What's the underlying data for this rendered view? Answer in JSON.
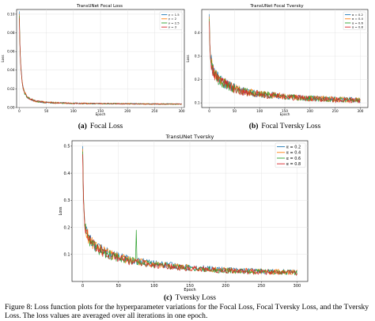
{
  "figure_caption": {
    "line1": "Figure 8: Loss function plots for the hyperparameter variations for the Focal Loss, Focal Tversky Loss, and the Tversky",
    "line2": "Loss. The loss values are averaged over all iterations in one epoch."
  },
  "colors": {
    "blue": "#1f77b4",
    "orange": "#ff7f0e",
    "green": "#2ca02c",
    "red": "#d62728"
  },
  "chart_data": [
    {
      "type": "line",
      "title": "TransUNet Focal Loss",
      "subcaption_label": "(a)",
      "subcaption_text": "Focal Loss",
      "xlabel": "Epoch",
      "ylabel": "Loss",
      "xlim": [
        -5,
        305
      ],
      "ylim": [
        0,
        0.105
      ],
      "xticks": [
        0,
        50,
        100,
        150,
        200,
        250,
        300
      ],
      "yticks": [
        0.0,
        0.02,
        0.04,
        0.06,
        0.08,
        0.1
      ],
      "ytick_labels": [
        "0.00",
        "0.02",
        "0.04",
        "0.06",
        "0.08",
        "0.10"
      ],
      "grid": true,
      "legend_position": "top-right",
      "noise": 0.0006,
      "spikes": [],
      "series": [
        {
          "name": "γ = 1.5",
          "color": "#1f77b4",
          "x": [
            0,
            1,
            2,
            3,
            5,
            7,
            10,
            15,
            20,
            30,
            40,
            50,
            70,
            100,
            150,
            200,
            250,
            300
          ],
          "y": [
            0.103,
            0.072,
            0.055,
            0.044,
            0.03,
            0.022,
            0.016,
            0.011,
            0.009,
            0.007,
            0.006,
            0.0055,
            0.005,
            0.0045,
            0.0042,
            0.004,
            0.0038,
            0.0037
          ]
        },
        {
          "name": "γ = 2",
          "color": "#ff7f0e",
          "x": [
            0,
            1,
            2,
            3,
            5,
            7,
            10,
            15,
            20,
            30,
            40,
            50,
            70,
            100,
            150,
            200,
            250,
            300
          ],
          "y": [
            0.1,
            0.07,
            0.054,
            0.043,
            0.029,
            0.021,
            0.016,
            0.011,
            0.009,
            0.007,
            0.006,
            0.0055,
            0.005,
            0.0045,
            0.0042,
            0.004,
            0.0038,
            0.0037
          ]
        },
        {
          "name": "γ = 2.5",
          "color": "#2ca02c",
          "x": [
            0,
            1,
            2,
            3,
            5,
            7,
            10,
            15,
            20,
            30,
            40,
            50,
            70,
            100,
            150,
            200,
            250,
            300
          ],
          "y": [
            0.098,
            0.069,
            0.053,
            0.042,
            0.029,
            0.021,
            0.015,
            0.011,
            0.009,
            0.007,
            0.006,
            0.0055,
            0.005,
            0.0045,
            0.0042,
            0.004,
            0.0038,
            0.0037
          ]
        },
        {
          "name": "γ = 3",
          "color": "#d62728",
          "x": [
            0,
            1,
            2,
            3,
            5,
            7,
            10,
            15,
            20,
            30,
            40,
            50,
            70,
            100,
            150,
            200,
            250,
            300
          ],
          "y": [
            0.096,
            0.068,
            0.052,
            0.041,
            0.028,
            0.02,
            0.015,
            0.011,
            0.009,
            0.007,
            0.006,
            0.0055,
            0.005,
            0.0045,
            0.0042,
            0.004,
            0.0038,
            0.0037
          ]
        }
      ]
    },
    {
      "type": "line",
      "title": "TransUNet Focal Tversky",
      "subcaption_label": "(b)",
      "subcaption_text": "Focal Tversky Loss",
      "xlabel": "Epoch",
      "ylabel": "Loss",
      "xlim": [
        -15,
        315
      ],
      "ylim": [
        0.08,
        0.5
      ],
      "xticks": [
        0,
        50,
        100,
        150,
        200,
        250,
        300
      ],
      "yticks": [
        0.1,
        0.2,
        0.3,
        0.4
      ],
      "ytick_labels": [
        "0.1",
        "0.2",
        "0.3",
        "0.4"
      ],
      "grid": true,
      "legend_position": "top-right",
      "noise": 0.012,
      "spikes": [],
      "series": [
        {
          "name": "α = 0.2",
          "color": "#1f77b4",
          "x": [
            0,
            1,
            2,
            3,
            5,
            8,
            10,
            15,
            20,
            30,
            40,
            50,
            60,
            70,
            80,
            100,
            150,
            200,
            250,
            300
          ],
          "y": [
            0.48,
            0.36,
            0.32,
            0.29,
            0.265,
            0.245,
            0.235,
            0.215,
            0.2,
            0.185,
            0.172,
            0.163,
            0.155,
            0.15,
            0.145,
            0.138,
            0.128,
            0.12,
            0.115,
            0.112
          ]
        },
        {
          "name": "α = 0.4",
          "color": "#ff7f0e",
          "x": [
            0,
            1,
            2,
            3,
            5,
            8,
            10,
            15,
            20,
            30,
            40,
            50,
            60,
            70,
            80,
            100,
            150,
            200,
            250,
            300
          ],
          "y": [
            0.47,
            0.355,
            0.315,
            0.29,
            0.265,
            0.245,
            0.235,
            0.215,
            0.2,
            0.185,
            0.172,
            0.163,
            0.155,
            0.15,
            0.145,
            0.138,
            0.128,
            0.12,
            0.115,
            0.112
          ]
        },
        {
          "name": "α = 0.6",
          "color": "#2ca02c",
          "x": [
            0,
            1,
            2,
            3,
            5,
            8,
            10,
            15,
            20,
            30,
            40,
            50,
            60,
            70,
            80,
            100,
            150,
            200,
            250,
            300
          ],
          "y": [
            0.46,
            0.35,
            0.31,
            0.285,
            0.26,
            0.24,
            0.23,
            0.21,
            0.198,
            0.183,
            0.17,
            0.162,
            0.154,
            0.149,
            0.144,
            0.137,
            0.127,
            0.119,
            0.114,
            0.111
          ]
        },
        {
          "name": "α = 0.8",
          "color": "#d62728",
          "x": [
            0,
            1,
            2,
            3,
            5,
            8,
            10,
            15,
            20,
            30,
            40,
            50,
            60,
            70,
            80,
            100,
            150,
            200,
            250,
            300
          ],
          "y": [
            0.45,
            0.345,
            0.305,
            0.28,
            0.255,
            0.238,
            0.228,
            0.208,
            0.196,
            0.181,
            0.169,
            0.161,
            0.153,
            0.148,
            0.143,
            0.136,
            0.126,
            0.118,
            0.113,
            0.11
          ]
        }
      ]
    },
    {
      "type": "line",
      "title": "TransUNet Tversky",
      "subcaption_label": "(c)",
      "subcaption_text": "Tversky Loss",
      "xlabel": "Epoch",
      "ylabel": "Loss",
      "xlim": [
        -15,
        315
      ],
      "ylim": [
        0.0,
        0.52
      ],
      "xticks": [
        0,
        50,
        100,
        150,
        200,
        250,
        300
      ],
      "yticks": [
        0.1,
        0.2,
        0.3,
        0.4,
        0.5
      ],
      "ytick_labels": [
        "0.1",
        "0.2",
        "0.3",
        "0.4",
        "0.5"
      ],
      "grid": true,
      "legend_position": "top-right",
      "noise": 0.01,
      "spikes": [
        {
          "series": 2,
          "x": 75,
          "y": 0.19
        }
      ],
      "series": [
        {
          "name": "α = 0.2",
          "color": "#1f77b4",
          "x": [
            0,
            1,
            2,
            3,
            5,
            8,
            10,
            15,
            20,
            30,
            40,
            50,
            60,
            80,
            100,
            150,
            200,
            250,
            300
          ],
          "y": [
            0.5,
            0.32,
            0.26,
            0.22,
            0.19,
            0.165,
            0.155,
            0.14,
            0.128,
            0.112,
            0.1,
            0.092,
            0.085,
            0.074,
            0.066,
            0.052,
            0.043,
            0.038,
            0.035
          ]
        },
        {
          "name": "α = 0.4",
          "color": "#ff7f0e",
          "x": [
            0,
            1,
            2,
            3,
            5,
            8,
            10,
            15,
            20,
            30,
            40,
            50,
            60,
            80,
            100,
            150,
            200,
            250,
            300
          ],
          "y": [
            0.49,
            0.315,
            0.255,
            0.215,
            0.185,
            0.162,
            0.152,
            0.137,
            0.125,
            0.11,
            0.098,
            0.09,
            0.083,
            0.072,
            0.064,
            0.05,
            0.042,
            0.037,
            0.034
          ]
        },
        {
          "name": "α = 0.6",
          "color": "#2ca02c",
          "x": [
            0,
            1,
            2,
            3,
            5,
            8,
            10,
            15,
            20,
            30,
            40,
            50,
            60,
            80,
            100,
            150,
            200,
            250,
            300
          ],
          "y": [
            0.48,
            0.31,
            0.25,
            0.21,
            0.182,
            0.16,
            0.15,
            0.135,
            0.123,
            0.108,
            0.096,
            0.088,
            0.081,
            0.07,
            0.062,
            0.049,
            0.041,
            0.036,
            0.033
          ]
        },
        {
          "name": "α = 0.8",
          "color": "#d62728",
          "x": [
            0,
            1,
            2,
            3,
            5,
            8,
            10,
            15,
            20,
            30,
            40,
            50,
            60,
            80,
            100,
            150,
            200,
            250,
            300
          ],
          "y": [
            0.47,
            0.305,
            0.245,
            0.205,
            0.178,
            0.158,
            0.148,
            0.133,
            0.121,
            0.106,
            0.094,
            0.086,
            0.079,
            0.068,
            0.06,
            0.048,
            0.04,
            0.035,
            0.032
          ]
        }
      ]
    }
  ]
}
